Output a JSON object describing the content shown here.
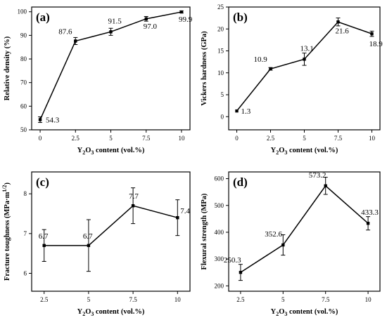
{
  "chart_data": [
    {
      "type": "line",
      "panel": "(a)",
      "x": [
        0,
        2.5,
        5,
        7.5,
        10
      ],
      "values": [
        54.3,
        87.6,
        91.5,
        97.0,
        99.9
      ],
      "errors": [
        1.2,
        1.5,
        1.5,
        1.0,
        0.4
      ],
      "data_labels": [
        "54.3",
        "87.6",
        "91.5",
        "97.0",
        "99.9"
      ],
      "xticks": [
        0,
        2.5,
        5,
        7.5,
        10
      ],
      "xtick_labels": [
        "0",
        "2.5",
        "5",
        "7.5",
        "10"
      ],
      "yticks": [
        50,
        60,
        70,
        80,
        90,
        100
      ],
      "ytick_labels": [
        "50",
        "60",
        "70",
        "80",
        "90",
        "100"
      ],
      "xlim": [
        -0.6,
        10.6
      ],
      "ylim": [
        50,
        102
      ],
      "ylabel": "Relative density (%)",
      "xlabel_pre": "Y",
      "xlabel_sub1": "2",
      "xlabel_mid": "O",
      "xlabel_sub2": "3",
      "xlabel_post": " content (vol.%)"
    },
    {
      "type": "line",
      "panel": "(b)",
      "x": [
        0,
        2.5,
        5,
        7.5,
        10
      ],
      "values": [
        1.3,
        10.9,
        13.1,
        21.6,
        18.9
      ],
      "errors": [
        0.0,
        0.3,
        1.4,
        0.9,
        0.6
      ],
      "data_labels": [
        "1.3",
        "10.9",
        "13.1",
        "21.6",
        "18.9"
      ],
      "xticks": [
        0,
        2.5,
        5,
        7.5,
        10
      ],
      "xtick_labels": [
        "0",
        "2.5",
        "5",
        "7.5",
        "10"
      ],
      "yticks": [
        0,
        5,
        10,
        15,
        20,
        25
      ],
      "ytick_labels": [
        "0",
        "5",
        "10",
        "15",
        "20",
        "25"
      ],
      "xlim": [
        -0.6,
        10.6
      ],
      "ylim": [
        -3,
        25
      ],
      "ylabel": "Vickers hardness (GPa)",
      "xlabel_pre": "Y",
      "xlabel_sub1": "2",
      "xlabel_mid": "O",
      "xlabel_sub2": "3",
      "xlabel_post": " content (vol.%)"
    },
    {
      "type": "line",
      "panel": "(c)",
      "x": [
        2.5,
        5,
        7.5,
        10
      ],
      "values": [
        6.7,
        6.7,
        7.7,
        7.4
      ],
      "errors": [
        0.4,
        0.65,
        0.45,
        0.45
      ],
      "data_labels": [
        "6.7",
        "6.7",
        "7.7",
        "7.4"
      ],
      "xticks": [
        2.5,
        5,
        7.5,
        10
      ],
      "xtick_labels": [
        "2.5",
        "5",
        "7.5",
        "10"
      ],
      "yticks": [
        6,
        7,
        8
      ],
      "ytick_labels": [
        "6",
        "7",
        "8"
      ],
      "xlim": [
        1.8,
        10.7
      ],
      "ylim": [
        5.55,
        8.55
      ],
      "ylabel_pre": "Fracture toughness (MPa·m",
      "ylabel_sup": "1/2",
      "ylabel_post": ")",
      "xlabel_pre": "Y",
      "xlabel_sub1": "2",
      "xlabel_mid": "O",
      "xlabel_sub2": "3",
      "xlabel_post": " content (vol.%)"
    },
    {
      "type": "line",
      "panel": "(d)",
      "x": [
        2.5,
        5,
        7.5,
        10
      ],
      "values": [
        250.3,
        352.6,
        573.2,
        433.3
      ],
      "errors": [
        30,
        38,
        32,
        25
      ],
      "data_labels": [
        "250.3",
        "352.6",
        "573.2",
        "433.3"
      ],
      "xticks": [
        2.5,
        5,
        7.5,
        10
      ],
      "xtick_labels": [
        "2.5",
        "5",
        "7.5",
        "10"
      ],
      "yticks": [
        200,
        300,
        400,
        500,
        600
      ],
      "ytick_labels": [
        "200",
        "300",
        "400",
        "500",
        "600"
      ],
      "xlim": [
        1.8,
        10.7
      ],
      "ylim": [
        180,
        625
      ],
      "ylabel": "Flexural strength (MPa)",
      "xlabel_pre": "Y",
      "xlabel_sub1": "2",
      "xlabel_mid": "O",
      "xlabel_sub2": "3",
      "xlabel_post": " content (vol.%)"
    }
  ]
}
